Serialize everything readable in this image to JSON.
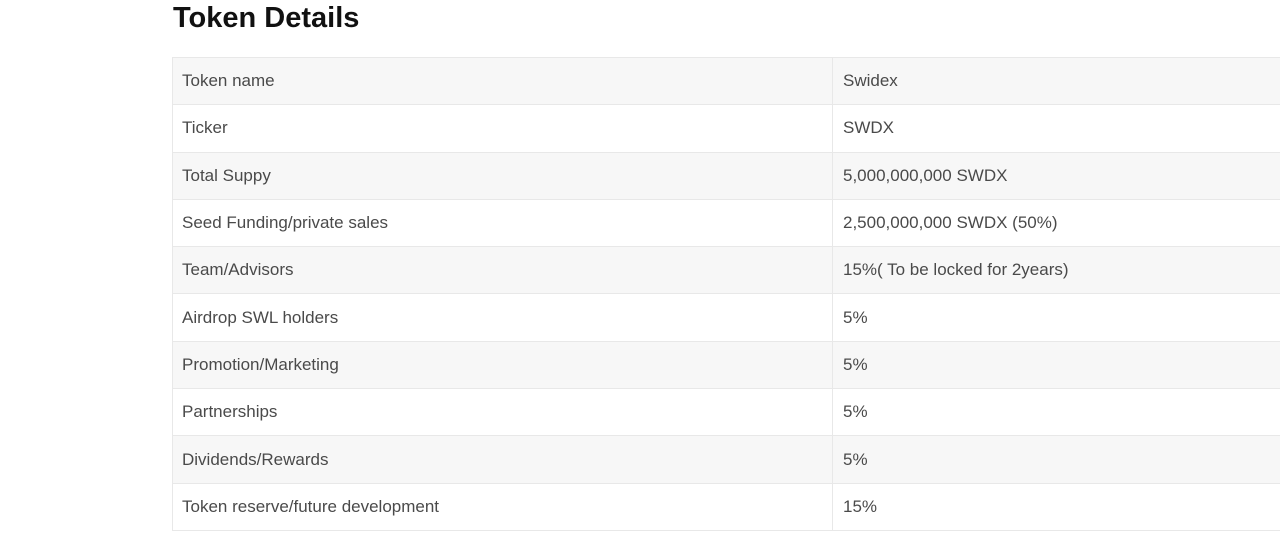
{
  "page_title": "Token Details",
  "table": {
    "rows": [
      {
        "label": "Token name",
        "value": "Swidex"
      },
      {
        "label": "Ticker",
        "value": "SWDX"
      },
      {
        "label": "Total Suppy",
        "value": "5,000,000,000 SWDX"
      },
      {
        "label": "Seed Funding/private sales",
        "value": "2,500,000,000 SWDX (50%)"
      },
      {
        "label": "Team/Advisors",
        "value": "15%( To be locked for 2years)"
      },
      {
        "label": "Airdrop SWL holders",
        "value": "5%"
      },
      {
        "label": "Promotion/Marketing",
        "value": "5%"
      },
      {
        "label": "Partnerships",
        "value": "5%"
      },
      {
        "label": "Dividends/Rewards",
        "value": "5%"
      },
      {
        "label": "Token reserve/future development",
        "value": "15%"
      }
    ]
  },
  "colors": {
    "background": "#ffffff",
    "row_alt_bg": "#f7f7f7",
    "border": "#e8e8e8",
    "text": "#4a4a4a",
    "title": "#111111"
  }
}
